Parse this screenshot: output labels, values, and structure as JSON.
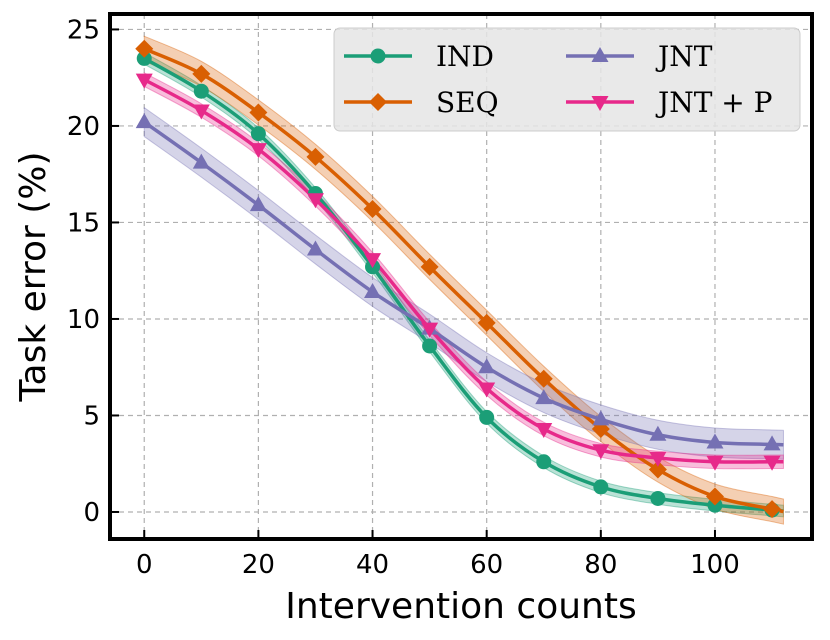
{
  "chart_data": {
    "type": "line",
    "title": "",
    "xlabel": "Intervention counts",
    "ylabel": "Task error (%)",
    "xlim": [
      -6,
      117
    ],
    "ylim": [
      -1.4,
      25.8
    ],
    "xticks": [
      0,
      20,
      40,
      60,
      80,
      100
    ],
    "yticks": [
      0,
      5,
      10,
      15,
      20,
      25
    ],
    "grid": true,
    "legend": {
      "placement": "top-right",
      "columns": 2
    },
    "x": [
      0,
      10,
      20,
      30,
      40,
      50,
      60,
      70,
      80,
      90,
      100,
      110
    ],
    "series": [
      {
        "name": "IND",
        "color": "#1b9e77",
        "marker": "circle",
        "values": [
          23.5,
          21.8,
          19.6,
          16.5,
          12.7,
          8.6,
          4.9,
          2.6,
          1.3,
          0.7,
          0.35,
          0.1
        ],
        "band": 0.3
      },
      {
        "name": "SEQ",
        "color": "#d95f02",
        "marker": "diamond",
        "values": [
          24.0,
          22.7,
          20.7,
          18.4,
          15.7,
          12.7,
          9.8,
          6.9,
          4.3,
          2.2,
          0.8,
          0.15
        ],
        "band": 0.65
      },
      {
        "name": "JNT",
        "color": "#7570b3",
        "marker": "triangle-up",
        "values": [
          20.2,
          18.1,
          15.9,
          13.6,
          11.4,
          9.5,
          7.5,
          5.9,
          4.8,
          4.0,
          3.6,
          3.5
        ],
        "band": 0.75
      },
      {
        "name": "JNT + P",
        "color": "#e7298a",
        "marker": "triangle-down",
        "values": [
          22.4,
          20.8,
          18.8,
          16.2,
          13.1,
          9.5,
          6.4,
          4.3,
          3.2,
          2.8,
          2.6,
          2.6
        ],
        "band": 0.35
      }
    ]
  }
}
